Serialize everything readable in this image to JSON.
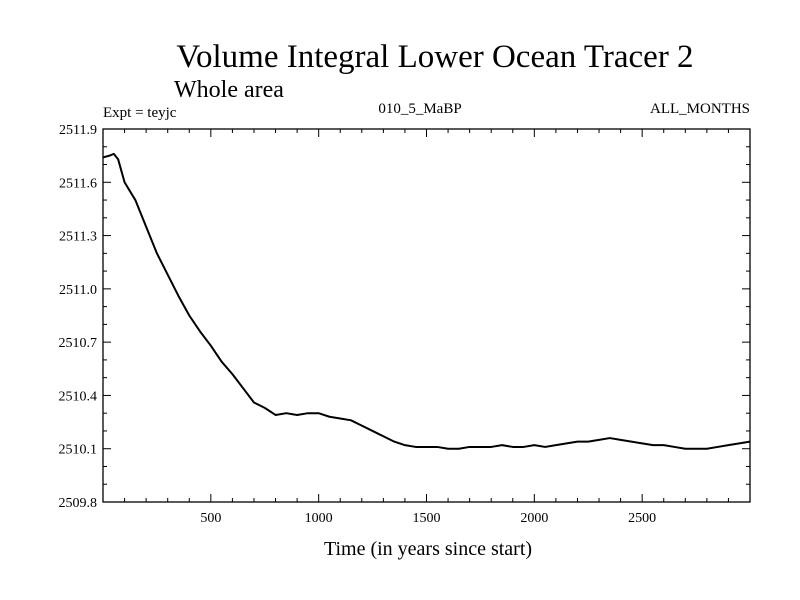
{
  "chart_data": {
    "type": "line",
    "title": "Volume Integral Lower Ocean Tracer 2",
    "subtitle": "Whole area",
    "expt_label": "Expt = teyjc",
    "center_label": "010_5_MaBP",
    "right_label": "ALL_MONTHS",
    "xlabel": "Time (in years since start)",
    "ylabel": "",
    "xlim": [
      0,
      3000
    ],
    "ylim": [
      2509.8,
      2511.9
    ],
    "xticks": [
      500,
      1000,
      1500,
      2000,
      2500
    ],
    "xtick_labels": [
      "500",
      "1000",
      "1500",
      "2000",
      "2500"
    ],
    "yticks": [
      2509.8,
      2510.1,
      2510.4,
      2510.7,
      2511.0,
      2511.3,
      2511.6,
      2511.9
    ],
    "ytick_labels": [
      "2509.8",
      "2510.1",
      "2510.4",
      "2510.7",
      "2511.0",
      "2511.3",
      "2511.6",
      "2511.9"
    ],
    "grid": false,
    "series": [
      {
        "name": "Lower Ocean Tracer 2",
        "x": [
          0,
          30,
          50,
          70,
          100,
          150,
          200,
          250,
          300,
          350,
          400,
          450,
          500,
          550,
          600,
          650,
          700,
          750,
          800,
          850,
          900,
          950,
          1000,
          1050,
          1100,
          1150,
          1200,
          1250,
          1300,
          1350,
          1400,
          1450,
          1500,
          1550,
          1600,
          1650,
          1700,
          1750,
          1800,
          1850,
          1900,
          1950,
          2000,
          2050,
          2100,
          2150,
          2200,
          2250,
          2300,
          2350,
          2400,
          2450,
          2500,
          2550,
          2600,
          2650,
          2700,
          2750,
          2800,
          2850,
          2900,
          2950,
          3000
        ],
        "values": [
          2511.74,
          2511.75,
          2511.76,
          2511.73,
          2511.6,
          2511.5,
          2511.35,
          2511.2,
          2511.08,
          2510.96,
          2510.85,
          2510.76,
          2510.68,
          2510.59,
          2510.52,
          2510.44,
          2510.36,
          2510.33,
          2510.29,
          2510.3,
          2510.29,
          2510.3,
          2510.3,
          2510.28,
          2510.27,
          2510.26,
          2510.23,
          2510.2,
          2510.17,
          2510.14,
          2510.12,
          2510.11,
          2510.11,
          2510.11,
          2510.1,
          2510.1,
          2510.11,
          2510.11,
          2510.11,
          2510.12,
          2510.11,
          2510.11,
          2510.12,
          2510.11,
          2510.12,
          2510.13,
          2510.14,
          2510.14,
          2510.15,
          2510.16,
          2510.15,
          2510.14,
          2510.13,
          2510.12,
          2510.12,
          2510.11,
          2510.1,
          2510.1,
          2510.1,
          2510.11,
          2510.12,
          2510.13,
          2510.14
        ]
      }
    ]
  }
}
